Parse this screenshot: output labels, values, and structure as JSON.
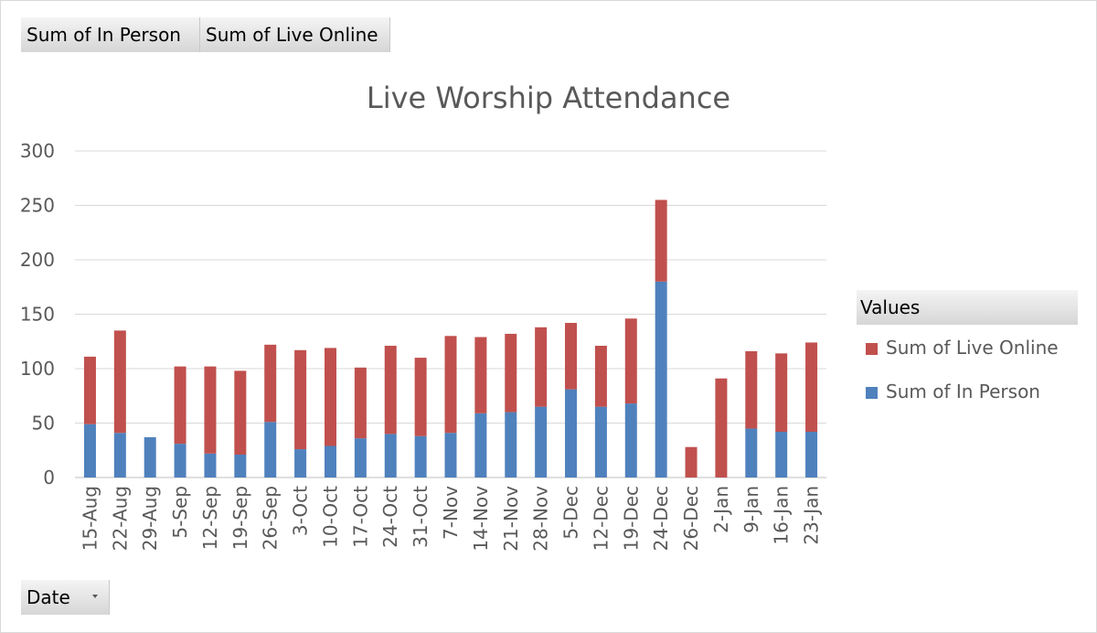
{
  "pivot": {
    "value_fields": [
      "Sum of In Person",
      "Sum of Live Online"
    ],
    "axis_field": "Date"
  },
  "legend": {
    "header": "Values",
    "items": [
      "Sum of Live Online",
      "Sum of In Person"
    ]
  },
  "colors": {
    "in_person": "#4f81bd",
    "live_online": "#c0504d",
    "gridline": "#d9d9d9"
  },
  "chart_data": {
    "type": "bar",
    "stacked": true,
    "title": "Live Worship Attendance",
    "xlabel": "",
    "ylabel": "",
    "ylim": [
      0,
      300
    ],
    "yticks": [
      0,
      50,
      100,
      150,
      200,
      250,
      300
    ],
    "grid": true,
    "legend_position": "right",
    "categories": [
      "15-Aug",
      "22-Aug",
      "29-Aug",
      "5-Sep",
      "12-Sep",
      "19-Sep",
      "26-Sep",
      "3-Oct",
      "10-Oct",
      "17-Oct",
      "24-Oct",
      "31-Oct",
      "7-Nov",
      "14-Nov",
      "21-Nov",
      "28-Nov",
      "5-Dec",
      "12-Dec",
      "19-Dec",
      "24-Dec",
      "26-Dec",
      "2-Jan",
      "9-Jan",
      "16-Jan",
      "23-Jan"
    ],
    "series": [
      {
        "name": "Sum of In Person",
        "values": [
          49,
          41,
          37,
          31,
          22,
          21,
          51,
          26,
          29,
          36,
          40,
          38,
          41,
          59,
          60,
          65,
          81,
          65,
          68,
          180,
          0,
          0,
          45,
          42,
          42
        ]
      },
      {
        "name": "Sum of Live Online",
        "values": [
          62,
          94,
          0,
          71,
          80,
          77,
          71,
          91,
          90,
          65,
          81,
          72,
          89,
          70,
          72,
          73,
          61,
          56,
          78,
          75,
          28,
          91,
          71,
          72,
          82
        ]
      }
    ]
  }
}
